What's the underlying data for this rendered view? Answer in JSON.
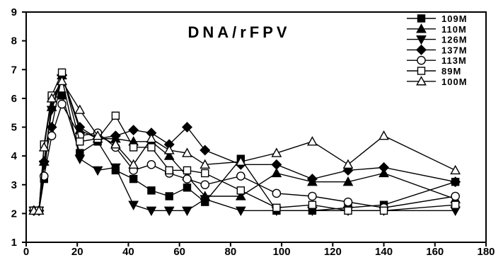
{
  "chart_data": {
    "type": "line",
    "title": "DNA/rFPV",
    "xlabel": "",
    "ylabel": "",
    "xlim": [
      0,
      180
    ],
    "ylim": [
      1,
      9
    ],
    "xticks": [
      0,
      20,
      40,
      60,
      80,
      100,
      120,
      140,
      160,
      180
    ],
    "yticks": [
      1,
      2,
      3,
      4,
      5,
      6,
      7,
      8,
      9
    ],
    "grid": false,
    "legend_position": "top-right",
    "series": [
      {
        "name": "109M",
        "marker": "filled-square",
        "x": [
          3,
          5,
          7,
          10,
          14,
          21,
          28,
          35,
          42,
          49,
          56,
          63,
          70,
          84,
          98,
          112,
          126,
          140,
          168
        ],
        "y": [
          2.1,
          2.1,
          3.2,
          6.0,
          6.1,
          4.1,
          4.5,
          3.5,
          3.2,
          2.8,
          2.6,
          2.9,
          2.4,
          3.9,
          2.1,
          2.1,
          2.2,
          2.3,
          3.1
        ]
      },
      {
        "name": "110M",
        "marker": "filled-triangle-up",
        "x": [
          3,
          5,
          7,
          10,
          14,
          21,
          28,
          35,
          42,
          49,
          56,
          63,
          70,
          84,
          98,
          112,
          126,
          140,
          168
        ],
        "y": [
          2.1,
          2.1,
          3.8,
          5.7,
          6.8,
          4.9,
          4.6,
          4.6,
          4.5,
          4.5,
          4.0,
          3.3,
          2.6,
          2.6,
          3.4,
          3.1,
          3.1,
          3.4,
          2.5
        ]
      },
      {
        "name": "126M",
        "marker": "filled-triangle-down",
        "x": [
          3,
          5,
          7,
          10,
          14,
          21,
          28,
          35,
          42,
          49,
          56,
          63,
          70,
          84,
          98,
          112,
          126,
          140,
          168
        ],
        "y": [
          2.1,
          2.1,
          3.7,
          5.6,
          6.7,
          3.9,
          3.5,
          3.6,
          2.3,
          2.1,
          2.1,
          2.1,
          2.5,
          2.1,
          2.1,
          2.1,
          2.1,
          2.1,
          2.1
        ]
      },
      {
        "name": "137M",
        "marker": "filled-diamond",
        "x": [
          3,
          5,
          7,
          10,
          14,
          21,
          28,
          35,
          42,
          49,
          56,
          63,
          70,
          84,
          98,
          112,
          126,
          140,
          168
        ],
        "y": [
          2.1,
          2.1,
          3.8,
          5.0,
          6.8,
          5.0,
          4.6,
          4.7,
          4.9,
          4.8,
          4.4,
          5.0,
          4.2,
          3.7,
          3.7,
          3.2,
          3.5,
          3.6,
          3.1
        ]
      },
      {
        "name": "113M",
        "marker": "open-circle",
        "x": [
          3,
          5,
          7,
          10,
          14,
          21,
          28,
          35,
          42,
          49,
          56,
          63,
          70,
          84,
          98,
          112,
          126,
          140,
          168
        ],
        "y": [
          2.1,
          2.1,
          3.3,
          4.7,
          5.8,
          4.7,
          4.8,
          4.3,
          3.5,
          3.7,
          3.4,
          3.2,
          3.0,
          3.3,
          2.7,
          2.6,
          2.4,
          2.2,
          2.6
        ]
      },
      {
        "name": "89M",
        "marker": "open-square",
        "x": [
          3,
          5,
          7,
          10,
          14,
          21,
          28,
          35,
          42,
          49,
          56,
          63,
          70,
          84,
          98,
          112,
          126,
          140,
          168
        ],
        "y": [
          2.1,
          2.1,
          4.4,
          6.1,
          6.9,
          4.5,
          4.6,
          5.4,
          4.3,
          4.3,
          3.5,
          3.5,
          3.4,
          2.8,
          2.2,
          2.3,
          2.1,
          2.1,
          2.3
        ]
      },
      {
        "name": "100M",
        "marker": "open-triangle-up",
        "x": [
          3,
          5,
          7,
          10,
          14,
          21,
          28,
          35,
          42,
          49,
          56,
          63,
          70,
          84,
          98,
          112,
          126,
          140,
          168
        ],
        "y": [
          2.1,
          2.1,
          4.3,
          6.0,
          6.6,
          5.6,
          4.7,
          4.4,
          3.7,
          4.6,
          4.2,
          4.1,
          3.7,
          3.8,
          4.1,
          4.5,
          3.7,
          4.7,
          3.5
        ]
      }
    ]
  }
}
